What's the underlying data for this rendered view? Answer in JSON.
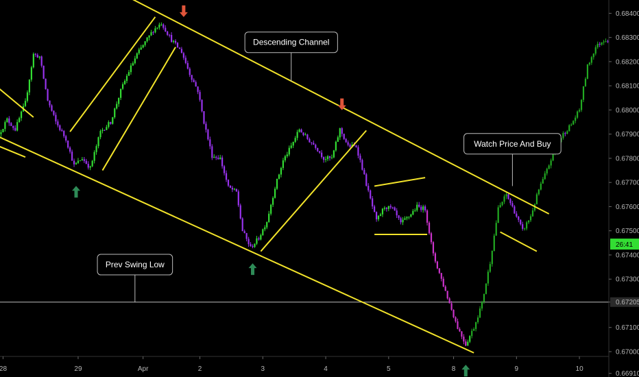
{
  "chart_data": {
    "type": "candlestick",
    "instrument": "",
    "ylim": [
      0.66895,
      0.68455
    ],
    "y_ticks": [
      "0.68400",
      "0.68300",
      "0.68200",
      "0.68100",
      "0.68000",
      "0.67900",
      "0.67800",
      "0.67700",
      "0.67600",
      "0.67500",
      "0.67400",
      "0.67300",
      "0.67205",
      "0.67100",
      "0.67000",
      "0.66910"
    ],
    "x_ticks": [
      {
        "label": "28",
        "slot": 1
      },
      {
        "label": "29",
        "slot": 38
      },
      {
        "label": "Apr",
        "slot": 70
      },
      {
        "label": "2",
        "slot": 98
      },
      {
        "label": "3",
        "slot": 129
      },
      {
        "label": "4",
        "slot": 160
      },
      {
        "label": "5",
        "slot": 191
      },
      {
        "label": "8",
        "slot": 223
      },
      {
        "label": "9",
        "slot": 254
      },
      {
        "label": "10",
        "slot": 285
      }
    ],
    "slots_visible": 300,
    "countdown_label": "26:41",
    "countdown_price": 0.67445,
    "horizontal_level": {
      "price": 0.67205,
      "label": "0.67205"
    },
    "colors": {
      "bull": "#33dd33",
      "bear": "#9933ee",
      "bear_late": "#cc33cc",
      "bull_late": "#22aa22",
      "trendline": "#f2e32a",
      "arrow_up": "#2e8b57",
      "arrow_down": "#e0553a",
      "countdown_bg": "#33dd33",
      "axis_text": "#b8b8b8"
    },
    "annotations": [
      {
        "text": "Descending Channel",
        "pointer_slot": 143,
        "pointer_price": 0.68118,
        "box_slot": 143,
        "box_price": 0.6828
      },
      {
        "text": "Prev Swing Low",
        "pointer_slot": 66,
        "pointer_price": 0.67205,
        "box_slot": 66,
        "box_price": 0.6736
      },
      {
        "text": "Watch Price And Buy",
        "pointer_slot": 252,
        "pointer_price": 0.67685,
        "box_slot": 252,
        "box_price": 0.6786
      }
    ],
    "arrows": [
      {
        "dir": "down",
        "slot": 90,
        "price": 0.6841
      },
      {
        "dir": "down",
        "slot": 168,
        "price": 0.68025
      },
      {
        "dir": "up",
        "slot": 37,
        "price": 0.6766
      },
      {
        "dir": "up",
        "slot": 124,
        "price": 0.6734
      },
      {
        "dir": "up",
        "slot": 229,
        "price": 0.6692
      }
    ],
    "trendlines": [
      {
        "s1": 62,
        "p1": 0.6847,
        "s2": 270,
        "p2": 0.6757
      },
      {
        "s1": -4,
        "p1": 0.679,
        "s2": 233,
        "p2": 0.66995
      },
      {
        "s1": -4,
        "p1": 0.6811,
        "s2": 16,
        "p2": 0.6797
      },
      {
        "s1": -4,
        "p1": 0.6786,
        "s2": 12,
        "p2": 0.67805
      },
      {
        "s1": 34,
        "p1": 0.6791,
        "s2": 76,
        "p2": 0.68385
      },
      {
        "s1": 50,
        "p1": 0.6775,
        "s2": 86,
        "p2": 0.6826
      },
      {
        "s1": 128,
        "p1": 0.67415,
        "s2": 180,
        "p2": 0.67915
      },
      {
        "s1": 184,
        "p1": 0.67685,
        "s2": 209,
        "p2": 0.6772
      },
      {
        "s1": 184,
        "p1": 0.67485,
        "s2": 210,
        "p2": 0.67485
      },
      {
        "s1": 246,
        "p1": 0.67495,
        "s2": 264,
        "p2": 0.67415
      }
    ],
    "anchors": [
      [
        0,
        0.679
      ],
      [
        4,
        0.6796
      ],
      [
        8,
        0.6792
      ],
      [
        13,
        0.6803
      ],
      [
        17,
        0.6823
      ],
      [
        20,
        0.6822
      ],
      [
        24,
        0.6804
      ],
      [
        28,
        0.6795
      ],
      [
        33,
        0.6788
      ],
      [
        37,
        0.6777
      ],
      [
        41,
        0.678
      ],
      [
        45,
        0.6776
      ],
      [
        50,
        0.6791
      ],
      [
        55,
        0.6795
      ],
      [
        60,
        0.6808
      ],
      [
        64,
        0.6816
      ],
      [
        68,
        0.6823
      ],
      [
        72,
        0.6828
      ],
      [
        76,
        0.6833
      ],
      [
        80,
        0.6836
      ],
      [
        85,
        0.6829
      ],
      [
        90,
        0.6824
      ],
      [
        94,
        0.6815
      ],
      [
        98,
        0.6808
      ],
      [
        101,
        0.6795
      ],
      [
        105,
        0.6781
      ],
      [
        109,
        0.678
      ],
      [
        113,
        0.6768
      ],
      [
        117,
        0.6766
      ],
      [
        120,
        0.675
      ],
      [
        124,
        0.6743
      ],
      [
        128,
        0.6747
      ],
      [
        132,
        0.6754
      ],
      [
        136,
        0.6768
      ],
      [
        140,
        0.6779
      ],
      [
        144,
        0.6785
      ],
      [
        148,
        0.6792
      ],
      [
        152,
        0.6788
      ],
      [
        156,
        0.6785
      ],
      [
        160,
        0.678
      ],
      [
        164,
        0.678
      ],
      [
        168,
        0.6792
      ],
      [
        172,
        0.6785
      ],
      [
        176,
        0.6785
      ],
      [
        179,
        0.6776
      ],
      [
        182,
        0.6766
      ],
      [
        186,
        0.6754
      ],
      [
        190,
        0.676
      ],
      [
        194,
        0.6759
      ],
      [
        198,
        0.6753
      ],
      [
        202,
        0.6756
      ],
      [
        206,
        0.676
      ],
      [
        210,
        0.6759
      ],
      [
        214,
        0.674
      ],
      [
        218,
        0.673
      ],
      [
        222,
        0.672
      ],
      [
        226,
        0.671
      ],
      [
        230,
        0.6703
      ],
      [
        234,
        0.671
      ],
      [
        238,
        0.672
      ],
      [
        242,
        0.6737
      ],
      [
        246,
        0.6759
      ],
      [
        250,
        0.6765
      ],
      [
        254,
        0.6758
      ],
      [
        258,
        0.675
      ],
      [
        262,
        0.6756
      ],
      [
        266,
        0.6767
      ],
      [
        270,
        0.6775
      ],
      [
        274,
        0.6784
      ],
      [
        278,
        0.679
      ],
      [
        282,
        0.6794
      ],
      [
        286,
        0.68
      ],
      [
        290,
        0.6818
      ],
      [
        294,
        0.6826
      ],
      [
        298,
        0.6829
      ]
    ]
  }
}
